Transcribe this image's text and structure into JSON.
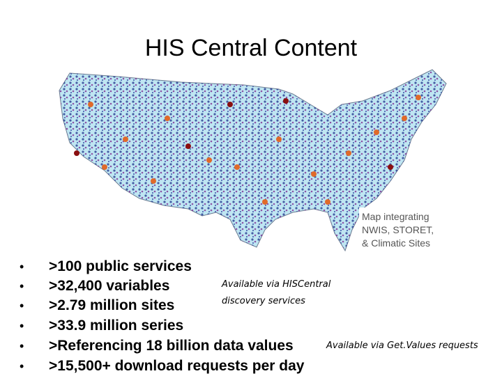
{
  "title": "HIS Central Content",
  "map_caption": [
    "Map integrating",
    "NWIS, STORET,",
    "& Climatic Sites"
  ],
  "bullets": [
    ">100 public services",
    ">32,400 variables",
    ">2.79 million sites",
    ">33.9 million series",
    ">Referencing 18 billion data values",
    ">15,500+ download requests per day"
  ],
  "annotations": [
    {
      "lines": [
        "Available via HISCentral",
        "discovery services"
      ]
    },
    {
      "text": "Available via Get.Values requests"
    }
  ]
}
